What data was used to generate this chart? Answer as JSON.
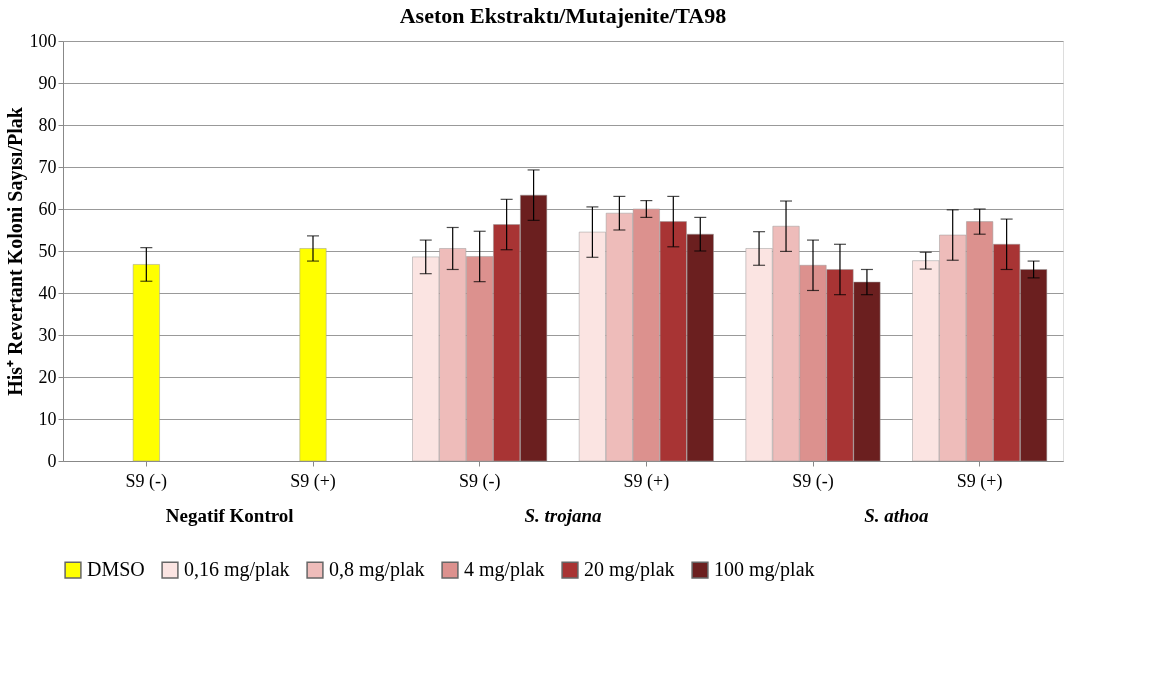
{
  "chart_data": {
    "type": "bar",
    "title": "Aseton Ekstraktı/Mutajenite/TA98",
    "ylabel": "His⁺ Revertant Koloni Sayısı/Plak",
    "categories": [
      "S9 (-)",
      "S9 (+)",
      "S9 (-)",
      "S9 (+)",
      "S9 (-)",
      "S9 (+)"
    ],
    "series": [
      {
        "name": "DMSO",
        "color": "#ffff00",
        "values": [
          46.8,
          50.6,
          null,
          null,
          null,
          null
        ],
        "errors": [
          4,
          3,
          null,
          null,
          null,
          null
        ]
      },
      {
        "name": "0,16 mg/plak",
        "color": "#fbe4e2",
        "values": [
          null,
          null,
          48.6,
          54.5,
          50.6,
          47.7
        ],
        "errors": [
          null,
          null,
          4,
          6,
          4,
          2
        ]
      },
      {
        "name": "0,8 mg/plak",
        "color": "#eebcba",
        "values": [
          null,
          null,
          50.6,
          59,
          55.9,
          53.8
        ],
        "errors": [
          null,
          null,
          5,
          4,
          6,
          6
        ]
      },
      {
        "name": "4 mg/plak",
        "color": "#dc918e",
        "values": [
          null,
          null,
          48.7,
          60,
          46.6,
          57
        ],
        "errors": [
          null,
          null,
          6,
          2,
          6,
          3
        ]
      },
      {
        "name": "20 mg/plak",
        "color": "#a83434",
        "values": [
          null,
          null,
          56.3,
          57,
          45.6,
          51.6
        ],
        "errors": [
          null,
          null,
          6,
          6,
          6,
          6
        ]
      },
      {
        "name": "100 mg/plak",
        "color": "#6b1f1f",
        "values": [
          null,
          null,
          63.3,
          54,
          42.6,
          45.6
        ],
        "errors": [
          null,
          null,
          6,
          4,
          3,
          2
        ]
      }
    ],
    "ylim": [
      0,
      100
    ],
    "yticks": [
      0,
      10,
      20,
      30,
      40,
      50,
      60,
      70,
      80,
      90,
      100
    ],
    "grid": "y",
    "legend": "bottom",
    "annotations": [
      "Negatif Kontrol",
      "S. trojana",
      "S. athoa"
    ]
  }
}
